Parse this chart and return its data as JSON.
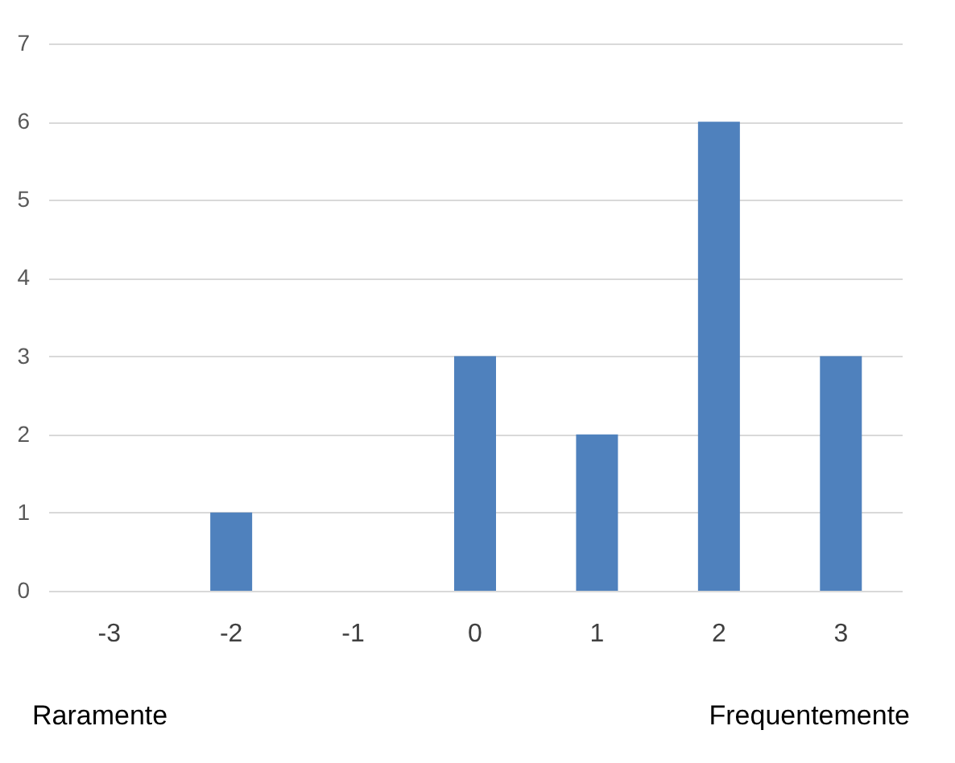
{
  "chart_data": {
    "type": "bar",
    "categories": [
      "-3",
      "-2",
      "-1",
      "0",
      "1",
      "2",
      "3"
    ],
    "values": [
      0,
      1,
      0,
      3,
      2,
      6,
      3
    ],
    "color": "#4f81bd",
    "ylim": [
      0,
      7
    ],
    "yticks": [
      0,
      1,
      2,
      3,
      4,
      5,
      6,
      7
    ],
    "grid": "y",
    "annotations": [
      "Raramente",
      "Frequentemente"
    ]
  }
}
